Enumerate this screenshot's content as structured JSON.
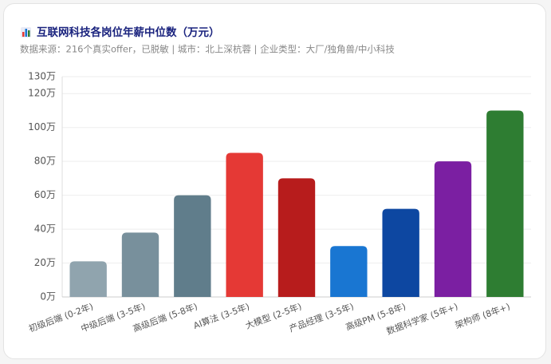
{
  "chart_data": {
    "type": "bar",
    "title": "互联网科技各岗位年薪中位数（万元）",
    "subtitle": "数据来源：216个真实offer，已脱敏 | 城市：北上深杭蓉 | 企业类型：大厂/独角兽/中小科技",
    "categories": [
      "初级后端 (0-2年)",
      "中级后端 (3-5年)",
      "高级后端 (5-8年)",
      "AI算法 (3-5年)",
      "大模型 (2-5年)",
      "产品经理 (3-5年)",
      "高级PM (5-8年)",
      "数据科学家 (5年+)",
      "架构师 (8年+)"
    ],
    "values": [
      21,
      38,
      60,
      85,
      70,
      30,
      52,
      80,
      110
    ],
    "colors": [
      "#90a4ae",
      "#78909c",
      "#607d8b",
      "#e53935",
      "#b71c1c",
      "#1976d2",
      "#0d47a1",
      "#7b1fa2",
      "#2e7d32"
    ],
    "ylim": [
      0,
      130
    ],
    "yticks": [
      {
        "value": 0,
        "label": "0万"
      },
      {
        "value": 20,
        "label": "20万"
      },
      {
        "value": 40,
        "label": "40万"
      },
      {
        "value": 60,
        "label": "60万"
      },
      {
        "value": 80,
        "label": "80万"
      },
      {
        "value": 100,
        "label": "100万"
      },
      {
        "value": 120,
        "label": "120万"
      },
      {
        "value": 130,
        "label": "130万"
      }
    ],
    "grid": true
  }
}
